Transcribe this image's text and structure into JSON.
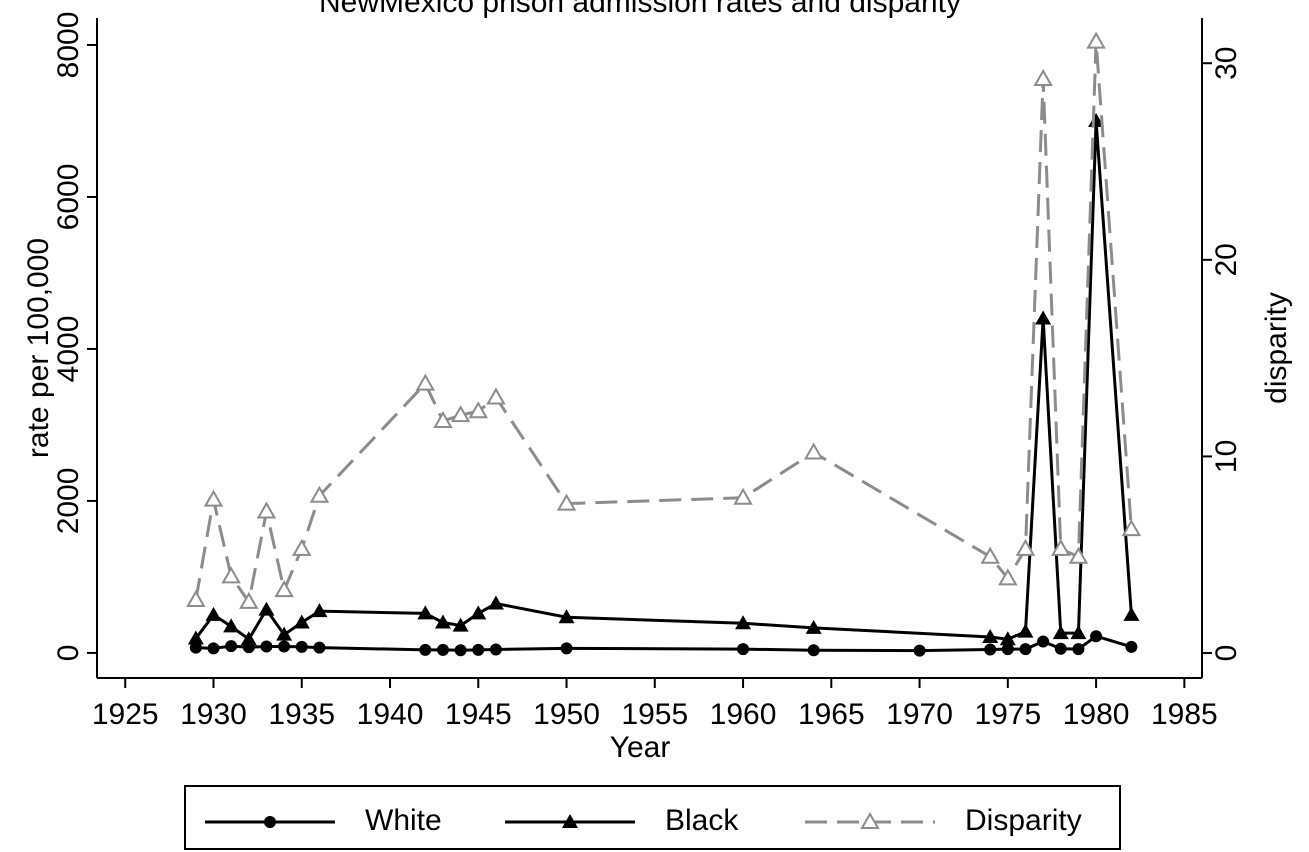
{
  "chart_data": {
    "type": "line",
    "title": "NewMexico prison admission rates and disparity",
    "xlabel": "Year",
    "ylabel": "rate per 100,000",
    "y2label": "disparity",
    "xlim": [
      1923.4,
      1986
    ],
    "xticks": [
      1925,
      1930,
      1935,
      1940,
      1945,
      1950,
      1955,
      1960,
      1965,
      1970,
      1975,
      1980,
      1985
    ],
    "ylim": [
      -330,
      8355
    ],
    "yticks": [
      0,
      2000,
      4000,
      6000,
      8000
    ],
    "y2lim": [
      -1.27,
      32.3
    ],
    "y2ticks": [
      0,
      10,
      20,
      30
    ],
    "legend": "bottom",
    "series": [
      {
        "name": "White",
        "color": "#000000",
        "marker": "circle",
        "x": [
          1929,
          1930,
          1931,
          1932,
          1933,
          1934,
          1935,
          1936,
          1942,
          1943,
          1944,
          1945,
          1946,
          1950,
          1960,
          1964,
          1970,
          1974,
          1975,
          1976,
          1977,
          1978,
          1979,
          1980,
          1982
        ],
        "values": [
          70,
          60,
          90,
          75,
          85,
          85,
          80,
          70,
          40,
          40,
          35,
          40,
          45,
          60,
          50,
          35,
          30,
          45,
          50,
          50,
          150,
          55,
          50,
          220,
          80
        ]
      },
      {
        "name": "Black",
        "color": "#000000",
        "marker": "triangle",
        "x": [
          1929,
          1930,
          1931,
          1932,
          1933,
          1934,
          1935,
          1936,
          1942,
          1943,
          1944,
          1945,
          1946,
          1950,
          1960,
          1964,
          1974,
          1975,
          1976,
          1977,
          1978,
          1979,
          1980,
          1982
        ],
        "values": [
          190,
          500,
          350,
          180,
          570,
          240,
          400,
          550,
          520,
          400,
          360,
          520,
          650,
          470,
          390,
          330,
          210,
          180,
          280,
          4400,
          260,
          260,
          7000,
          500
        ]
      },
      {
        "name": "Disparity",
        "color": "#8c8c8c",
        "marker": "hollow-triangle",
        "dashed": true,
        "axis": "y2",
        "x": [
          1929,
          1930,
          1931,
          1932,
          1933,
          1934,
          1935,
          1936,
          1942,
          1943,
          1944,
          1945,
          1946,
          1950,
          1960,
          1964,
          1974,
          1975,
          1976,
          1977,
          1978,
          1979,
          1980,
          1982
        ],
        "values": [
          2.7,
          7.8,
          3.9,
          2.6,
          7.2,
          3.2,
          5.3,
          8.0,
          13.7,
          11.8,
          12.1,
          12.3,
          13.0,
          7.6,
          7.9,
          10.2,
          4.9,
          3.8,
          5.3,
          29.2,
          5.3,
          4.9,
          31.1,
          6.3
        ]
      }
    ]
  }
}
